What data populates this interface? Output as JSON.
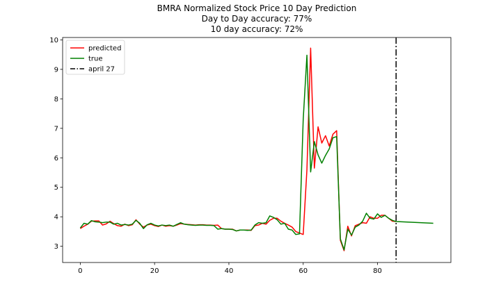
{
  "chart_data": {
    "type": "line",
    "title": [
      "BMRA Normalized Stock Price 10 Day Prediction",
      "Day to Day accuracy: 77%",
      "10 day accuracy: 72%"
    ],
    "xlabel": "",
    "ylabel": "",
    "xlim": [
      -4.75,
      99.75
    ],
    "ylim": [
      2.45,
      10.08
    ],
    "x_ticks": [
      0,
      20,
      40,
      60,
      80
    ],
    "y_ticks": [
      3,
      4,
      5,
      6,
      7,
      8,
      9,
      10
    ],
    "grid": false,
    "legend_position": "upper-left",
    "series": [
      {
        "name": "predicted",
        "color": "#ff0000",
        "points": [
          [
            0,
            3.6
          ],
          [
            1,
            3.68
          ],
          [
            2,
            3.75
          ],
          [
            3,
            3.85
          ],
          [
            4,
            3.86
          ],
          [
            5,
            3.86
          ],
          [
            6,
            3.72
          ],
          [
            7,
            3.76
          ],
          [
            8,
            3.85
          ],
          [
            9,
            3.77
          ],
          [
            10,
            3.7
          ],
          [
            11,
            3.68
          ],
          [
            12,
            3.75
          ],
          [
            13,
            3.7
          ],
          [
            14,
            3.73
          ],
          [
            15,
            3.9
          ],
          [
            16,
            3.75
          ],
          [
            17,
            3.65
          ],
          [
            18,
            3.72
          ],
          [
            19,
            3.75
          ],
          [
            20,
            3.7
          ],
          [
            21,
            3.67
          ],
          [
            22,
            3.72
          ],
          [
            23,
            3.68
          ],
          [
            24,
            3.7
          ],
          [
            25,
            3.68
          ],
          [
            26,
            3.72
          ],
          [
            27,
            3.77
          ],
          [
            28,
            3.75
          ],
          [
            29,
            3.74
          ],
          [
            30,
            3.73
          ],
          [
            31,
            3.72
          ],
          [
            32,
            3.73
          ],
          [
            33,
            3.73
          ],
          [
            34,
            3.72
          ],
          [
            35,
            3.72
          ],
          [
            36,
            3.71
          ],
          [
            37,
            3.72
          ],
          [
            38,
            3.6
          ],
          [
            39,
            3.58
          ],
          [
            40,
            3.58
          ],
          [
            41,
            3.58
          ],
          [
            42,
            3.52
          ],
          [
            43,
            3.55
          ],
          [
            44,
            3.55
          ],
          [
            45,
            3.55
          ],
          [
            46,
            3.54
          ],
          [
            47,
            3.7
          ],
          [
            48,
            3.72
          ],
          [
            49,
            3.78
          ],
          [
            50,
            3.75
          ],
          [
            51,
            3.88
          ],
          [
            52,
            3.95
          ],
          [
            53,
            3.95
          ],
          [
            54,
            3.85
          ],
          [
            55,
            3.78
          ],
          [
            56,
            3.72
          ],
          [
            57,
            3.65
          ],
          [
            58,
            3.5
          ],
          [
            59,
            3.45
          ],
          [
            60,
            3.4
          ],
          [
            61,
            5.6
          ],
          [
            62,
            9.72
          ],
          [
            63,
            5.65
          ],
          [
            64,
            7.05
          ],
          [
            65,
            6.5
          ],
          [
            66,
            6.75
          ],
          [
            67,
            6.4
          ],
          [
            68,
            6.8
          ],
          [
            69,
            6.92
          ],
          [
            70,
            3.2
          ],
          [
            71,
            2.85
          ],
          [
            72,
            3.68
          ],
          [
            73,
            3.35
          ],
          [
            74,
            3.7
          ],
          [
            75,
            3.75
          ],
          [
            76,
            3.8
          ],
          [
            77,
            3.78
          ],
          [
            78,
            4.0
          ],
          [
            79,
            3.95
          ],
          [
            80,
            3.95
          ],
          [
            81,
            4.05
          ],
          [
            82,
            4.05
          ],
          [
            83,
            3.95
          ],
          [
            84,
            3.85
          ],
          [
            85,
            3.84
          ]
        ]
      },
      {
        "name": "true",
        "color": "#008000",
        "points": [
          [
            0,
            3.62
          ],
          [
            1,
            3.78
          ],
          [
            2,
            3.75
          ],
          [
            3,
            3.87
          ],
          [
            4,
            3.83
          ],
          [
            5,
            3.82
          ],
          [
            6,
            3.8
          ],
          [
            7,
            3.82
          ],
          [
            8,
            3.82
          ],
          [
            9,
            3.75
          ],
          [
            10,
            3.78
          ],
          [
            11,
            3.72
          ],
          [
            12,
            3.74
          ],
          [
            13,
            3.72
          ],
          [
            14,
            3.75
          ],
          [
            15,
            3.88
          ],
          [
            16,
            3.78
          ],
          [
            17,
            3.6
          ],
          [
            18,
            3.73
          ],
          [
            19,
            3.78
          ],
          [
            20,
            3.72
          ],
          [
            21,
            3.69
          ],
          [
            22,
            3.72
          ],
          [
            23,
            3.7
          ],
          [
            24,
            3.72
          ],
          [
            25,
            3.68
          ],
          [
            26,
            3.74
          ],
          [
            27,
            3.8
          ],
          [
            28,
            3.75
          ],
          [
            29,
            3.73
          ],
          [
            30,
            3.72
          ],
          [
            31,
            3.71
          ],
          [
            32,
            3.72
          ],
          [
            33,
            3.72
          ],
          [
            34,
            3.71
          ],
          [
            35,
            3.71
          ],
          [
            36,
            3.7
          ],
          [
            37,
            3.58
          ],
          [
            38,
            3.6
          ],
          [
            39,
            3.58
          ],
          [
            40,
            3.58
          ],
          [
            41,
            3.57
          ],
          [
            42,
            3.52
          ],
          [
            43,
            3.55
          ],
          [
            44,
            3.55
          ],
          [
            45,
            3.54
          ],
          [
            46,
            3.55
          ],
          [
            47,
            3.72
          ],
          [
            48,
            3.8
          ],
          [
            49,
            3.78
          ],
          [
            50,
            3.8
          ],
          [
            51,
            4.03
          ],
          [
            52,
            3.98
          ],
          [
            53,
            3.9
          ],
          [
            54,
            3.75
          ],
          [
            55,
            3.78
          ],
          [
            56,
            3.58
          ],
          [
            57,
            3.55
          ],
          [
            58,
            3.4
          ],
          [
            59,
            3.42
          ],
          [
            60,
            7.3
          ],
          [
            61,
            9.48
          ],
          [
            62,
            5.52
          ],
          [
            63,
            6.55
          ],
          [
            64,
            6.1
          ],
          [
            65,
            5.82
          ],
          [
            66,
            6.08
          ],
          [
            67,
            6.3
          ],
          [
            68,
            6.68
          ],
          [
            69,
            6.72
          ],
          [
            70,
            3.25
          ],
          [
            71,
            2.88
          ],
          [
            72,
            3.58
          ],
          [
            73,
            3.38
          ],
          [
            74,
            3.65
          ],
          [
            75,
            3.72
          ],
          [
            76,
            3.85
          ],
          [
            77,
            4.12
          ],
          [
            78,
            3.95
          ],
          [
            79,
            3.92
          ],
          [
            80,
            4.1
          ],
          [
            81,
            3.98
          ],
          [
            82,
            4.05
          ],
          [
            83,
            3.95
          ],
          [
            84,
            3.88
          ],
          [
            85,
            3.84
          ],
          [
            95,
            3.78
          ]
        ]
      }
    ],
    "vline": {
      "name": "april 27",
      "x": 85,
      "style": "dash-dot",
      "color": "#000000"
    }
  }
}
